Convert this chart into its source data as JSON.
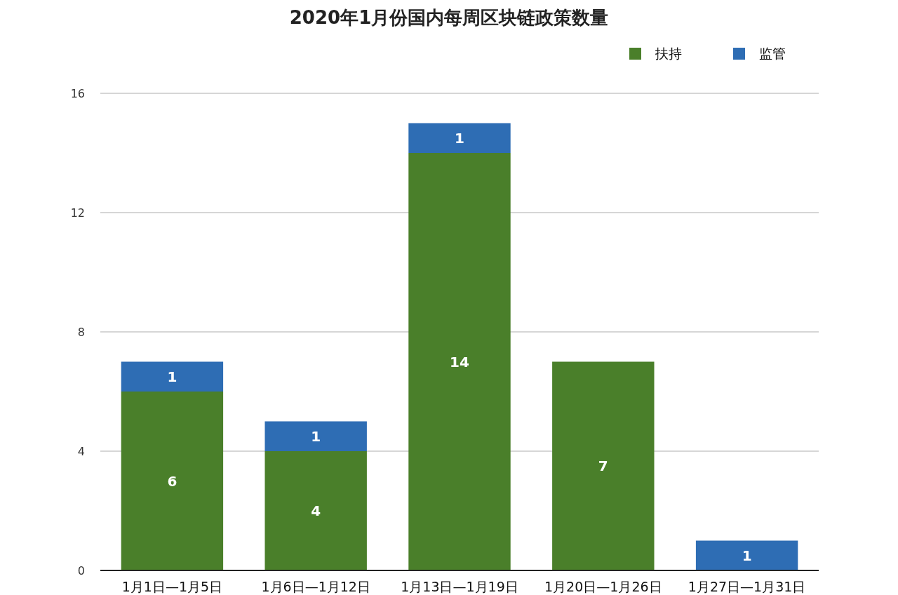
{
  "chart_data": {
    "type": "bar",
    "stacked": true,
    "title": "2020年1月份国内每周区块链政策数量",
    "categories": [
      "1月1日—1月5日",
      "1月6日—1月12日",
      "1月13日—1月19日",
      "1月20日—1月26日",
      "1月27日—1月31日"
    ],
    "series": [
      {
        "name": "扶持",
        "color": "#4a7f2a",
        "values": [
          6,
          4,
          14,
          7,
          null
        ]
      },
      {
        "name": "监管",
        "color": "#2e6db4",
        "values": [
          1,
          1,
          1,
          null,
          1
        ]
      }
    ],
    "ylim": [
      0,
      16
    ],
    "yticks": [
      0,
      4,
      8,
      12,
      16
    ],
    "grid": "y",
    "legend": "top right",
    "data_labels": true
  }
}
